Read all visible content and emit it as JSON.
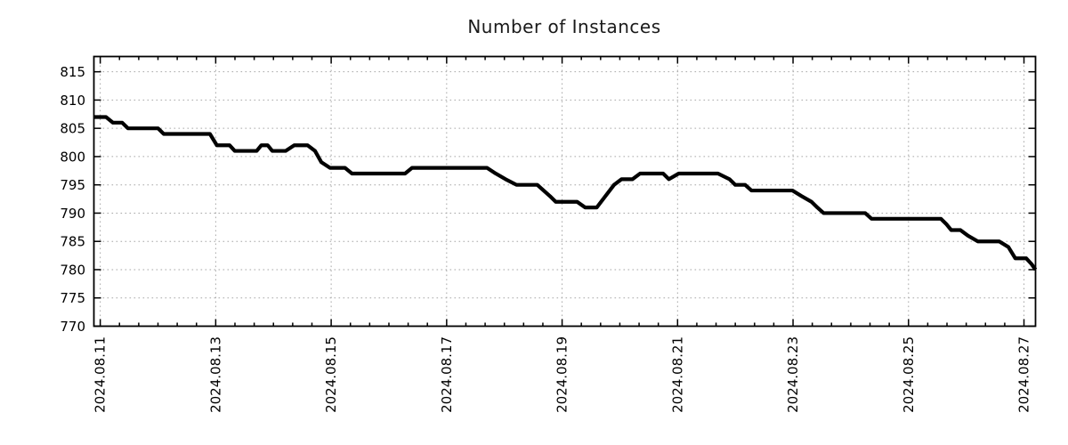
{
  "page": {
    "background": "#ffffff"
  },
  "chart_data": {
    "type": "line",
    "title": "Number of Instances",
    "xlabel": "",
    "ylabel": "",
    "legend": "none",
    "grid": true,
    "x_unit": "days since 2024.08.11",
    "x_range_days": [
      -0.11,
      16.2
    ],
    "y_range": [
      770,
      817.7
    ],
    "x_axis": {
      "tick_labels": [
        "2024.08.11",
        "2024.08.13",
        "2024.08.15",
        "2024.08.17",
        "2024.08.19",
        "2024.08.21",
        "2024.08.23",
        "2024.08.25",
        "2024.08.27"
      ],
      "tick_days": [
        0,
        2,
        4,
        6,
        8,
        10,
        12,
        14,
        16
      ],
      "minor_tick_interval_days": 0.33333,
      "label_rotation_deg": -90
    },
    "y_axis": {
      "ticks": [
        770,
        775,
        780,
        785,
        790,
        795,
        800,
        805,
        810,
        815
      ]
    },
    "style": {
      "line_color": "#000000",
      "line_width": 4.2,
      "grid_color": "#a6a6a6",
      "border_color": "#000000",
      "text_color": "#000000",
      "background": "#ffffff"
    },
    "series": [
      {
        "name": "instances",
        "points": [
          [
            -0.11,
            807
          ],
          [
            0.1,
            807
          ],
          [
            0.22,
            806
          ],
          [
            0.38,
            806
          ],
          [
            0.48,
            805
          ],
          [
            1.0,
            805
          ],
          [
            1.1,
            804
          ],
          [
            1.9,
            804
          ],
          [
            2.02,
            802
          ],
          [
            2.24,
            802
          ],
          [
            2.33,
            801
          ],
          [
            2.71,
            801
          ],
          [
            2.79,
            802
          ],
          [
            2.9,
            802
          ],
          [
            2.98,
            801
          ],
          [
            3.21,
            801
          ],
          [
            3.36,
            802
          ],
          [
            3.59,
            802
          ],
          [
            3.72,
            801
          ],
          [
            3.83,
            799
          ],
          [
            3.98,
            798
          ],
          [
            4.24,
            798
          ],
          [
            4.36,
            797
          ],
          [
            5.28,
            797
          ],
          [
            5.4,
            798
          ],
          [
            6.7,
            798
          ],
          [
            6.85,
            797
          ],
          [
            7.02,
            796
          ],
          [
            7.21,
            795
          ],
          [
            7.57,
            795
          ],
          [
            7.68,
            794
          ],
          [
            7.79,
            793
          ],
          [
            7.89,
            792
          ],
          [
            8.26,
            792
          ],
          [
            8.4,
            791
          ],
          [
            8.6,
            791
          ],
          [
            8.75,
            793
          ],
          [
            8.9,
            795
          ],
          [
            9.03,
            796
          ],
          [
            9.22,
            796
          ],
          [
            9.35,
            797
          ],
          [
            9.75,
            797
          ],
          [
            9.85,
            796
          ],
          [
            10.02,
            797
          ],
          [
            10.7,
            797
          ],
          [
            10.9,
            796
          ],
          [
            11.0,
            795
          ],
          [
            11.17,
            795
          ],
          [
            11.28,
            794
          ],
          [
            11.99,
            794
          ],
          [
            12.15,
            793
          ],
          [
            12.32,
            792
          ],
          [
            12.42,
            791
          ],
          [
            12.53,
            790
          ],
          [
            13.25,
            790
          ],
          [
            13.36,
            789
          ],
          [
            14.56,
            789
          ],
          [
            14.66,
            788
          ],
          [
            14.74,
            787
          ],
          [
            14.9,
            787
          ],
          [
            15.03,
            786
          ],
          [
            15.2,
            785
          ],
          [
            15.57,
            785
          ],
          [
            15.73,
            784
          ],
          [
            15.85,
            782
          ],
          [
            16.04,
            782
          ],
          [
            16.13,
            781
          ],
          [
            16.2,
            780
          ]
        ]
      }
    ]
  }
}
